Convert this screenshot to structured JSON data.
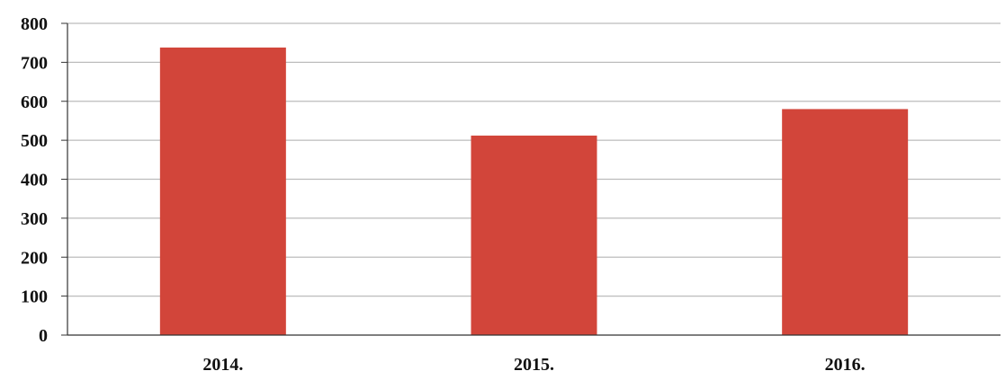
{
  "chart_data": {
    "type": "bar",
    "title": "",
    "xlabel": "",
    "ylabel": "",
    "categories": [
      "2014.",
      "2015.",
      "2016."
    ],
    "values": [
      738,
      512,
      580
    ],
    "ylim": [
      0,
      800
    ],
    "yticks": [
      0,
      100,
      200,
      300,
      400,
      500,
      600,
      700,
      800
    ],
    "grid": true,
    "legend": "none",
    "bar_color": "#d2453a",
    "grid_color": "#bcbcbc"
  }
}
